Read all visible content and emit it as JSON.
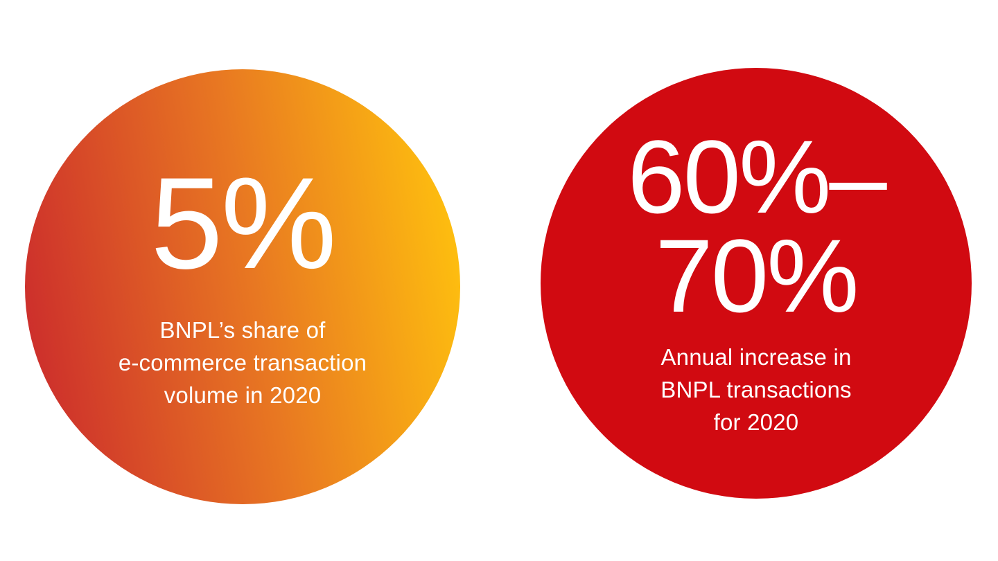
{
  "colors": {
    "background": "#ffffff",
    "left_circle_gradient_start": "#c9252d",
    "left_circle_gradient_mid": "#e87722",
    "left_circle_gradient_end": "#ffc20e",
    "right_circle": "#d10a11",
    "text": "#ffffff"
  },
  "stats": [
    {
      "value": "5%",
      "value_lines": [
        "5%"
      ],
      "label": "BNPL’s share of e-commerce transaction volume in 2020",
      "label_lines": [
        "BNPL’s share of",
        "e-commerce transaction",
        "volume in 2020"
      ]
    },
    {
      "value": "60%–70%",
      "value_lines": [
        "60%–",
        "70%"
      ],
      "label": "Annual increase in BNPL transactions for 2020",
      "label_lines": [
        "Annual increase in",
        "BNPL transactions",
        "for 2020"
      ]
    }
  ],
  "chart_data": {
    "type": "table",
    "columns": [
      "value",
      "description"
    ],
    "rows": [
      [
        "5%",
        "BNPL’s share of e-commerce transaction volume in 2020"
      ],
      [
        "60%–70%",
        "Annual increase in BNPL transactions for 2020"
      ]
    ]
  }
}
